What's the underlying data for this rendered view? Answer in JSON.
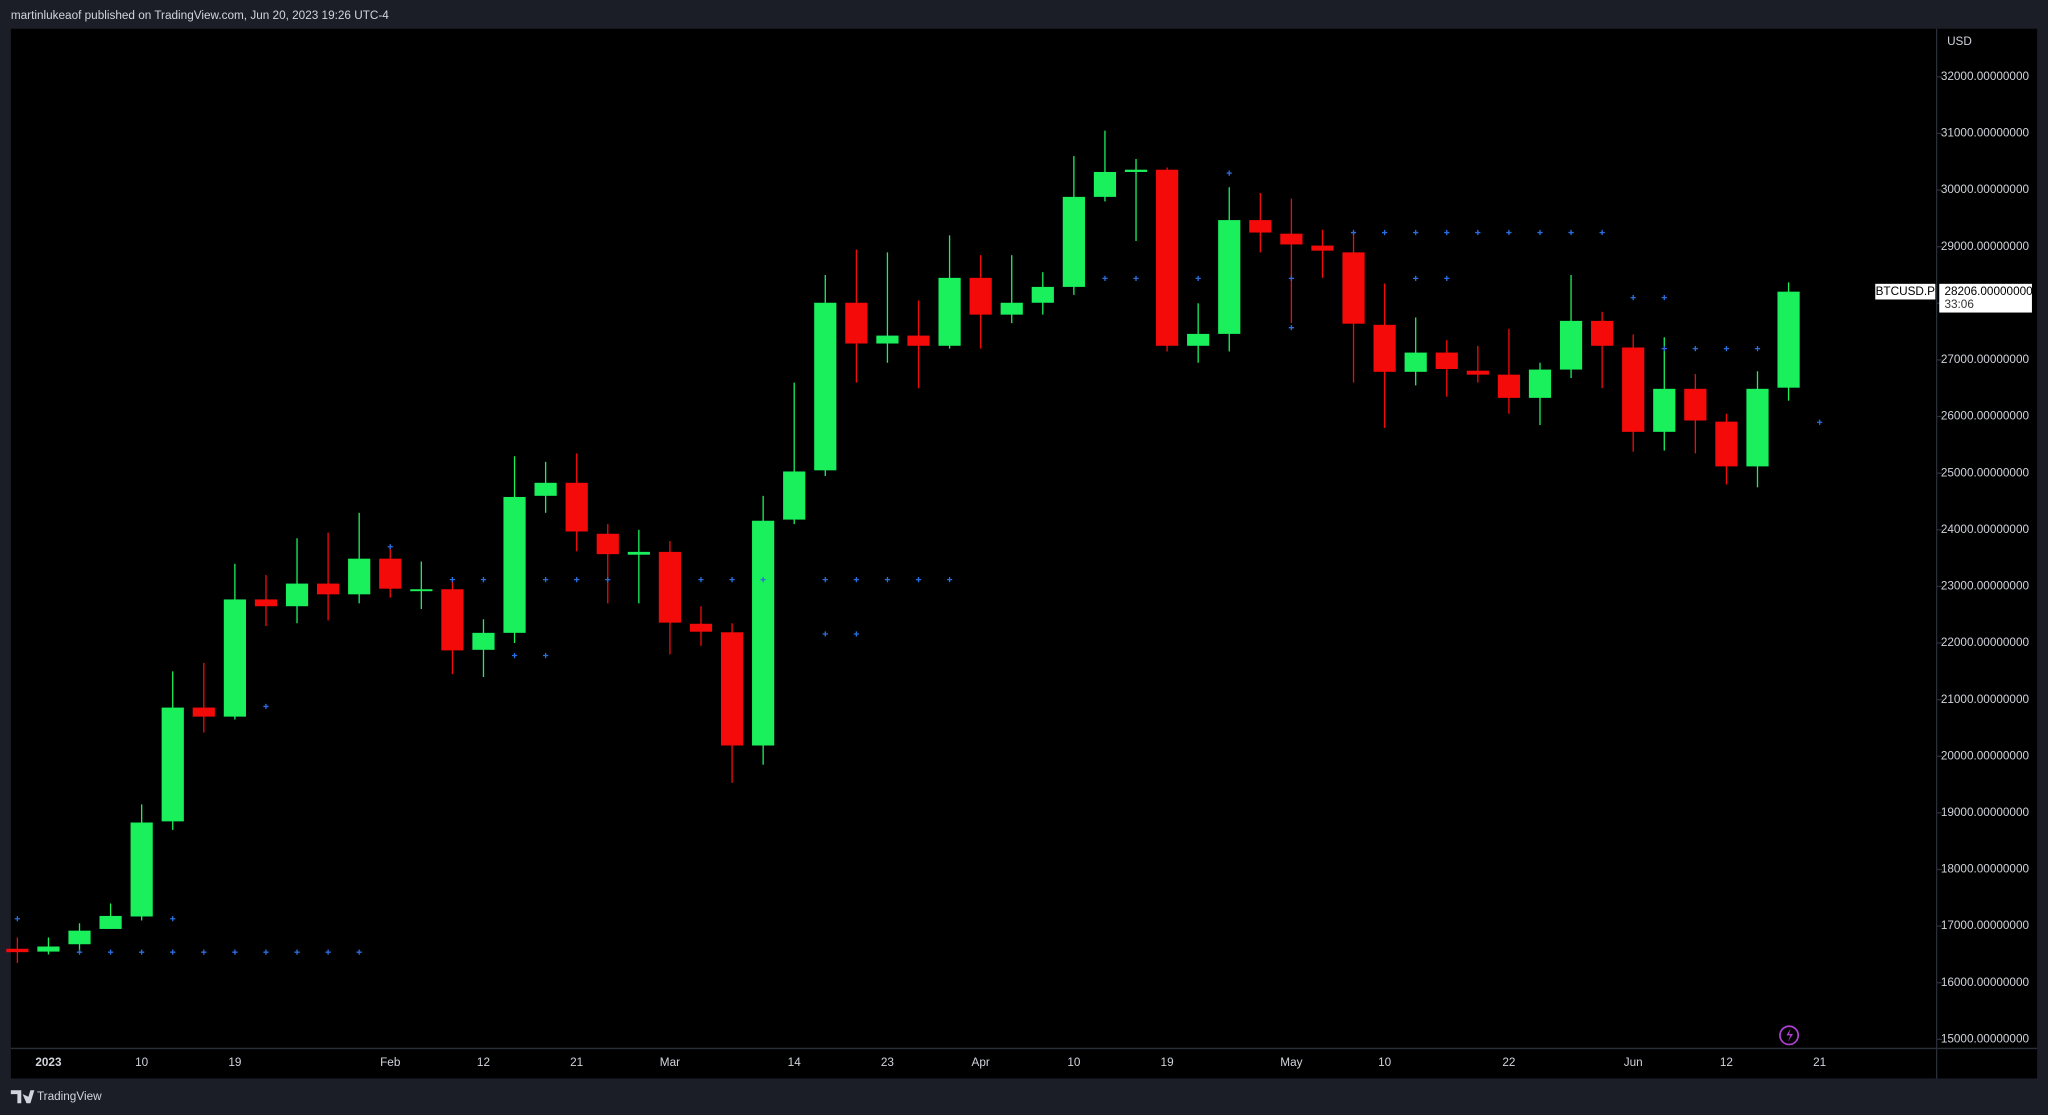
{
  "header": {
    "published": "martinlukeaof published on TradingView.com, Jun 20, 2023 19:26 UTC-4"
  },
  "footer": {
    "brand": "TradingView"
  },
  "chart_data": {
    "type": "candlestick",
    "currency": "USD",
    "symbol": "BTCUSD.P",
    "countdown": "33:06",
    "last_price": {
      "value": 28206,
      "label": "28206.00000000"
    },
    "up_color": "#1af05c",
    "down_color": "#f50a0a",
    "categories": [
      null,
      "2023",
      null,
      null,
      "10",
      null,
      null,
      "19",
      null,
      null,
      null,
      null,
      "Feb",
      null,
      null,
      "12",
      null,
      null,
      "21",
      null,
      null,
      "Mar",
      null,
      null,
      null,
      "14",
      null,
      null,
      "23",
      null,
      null,
      "Apr",
      null,
      null,
      "10",
      null,
      null,
      "19",
      null,
      null,
      null,
      "May",
      null,
      null,
      "10",
      null,
      null,
      null,
      "22",
      null,
      null,
      null,
      "Jun",
      null,
      null,
      "12",
      null,
      null,
      "21"
    ],
    "open": [
      16600,
      16550,
      16680,
      16950,
      17170,
      18850,
      20860,
      20700,
      22770,
      22650,
      23050,
      22860,
      23490,
      22940,
      22950,
      21880,
      22180,
      24600,
      24830,
      23930,
      23560,
      23610,
      22340,
      22190,
      20190,
      24180,
      25050,
      28010,
      27290,
      27430,
      27250,
      28450,
      27800,
      28010,
      28290,
      29880,
      30320,
      30360,
      27250,
      27460,
      29470,
      29230,
      29020,
      28900,
      27620,
      26790,
      27130,
      26810,
      26740,
      26330,
      26830,
      27690,
      27220,
      25730,
      26490,
      25910,
      25120,
      26510,
      null
    ],
    "high": [
      16800,
      16800,
      17050,
      17400,
      19150,
      21500,
      21650,
      23400,
      23200,
      23850,
      23950,
      24300,
      23700,
      23440,
      23100,
      22420,
      25300,
      25200,
      25350,
      24100,
      24000,
      23800,
      22650,
      22350,
      24600,
      26600,
      28500,
      28950,
      28900,
      28050,
      29200,
      28850,
      28850,
      28550,
      30600,
      31050,
      30550,
      30400,
      28000,
      30050,
      29950,
      29850,
      29300,
      29250,
      28350,
      27750,
      27350,
      27250,
      27550,
      26950,
      28500,
      27850,
      27450,
      27400,
      26750,
      26050,
      26800,
      28370,
      null
    ],
    "low": [
      16350,
      16500,
      16550,
      16950,
      17100,
      18700,
      20420,
      20650,
      22300,
      22350,
      22400,
      22700,
      22800,
      22600,
      21450,
      21400,
      22000,
      24300,
      23620,
      22700,
      22700,
      21800,
      21950,
      19530,
      19850,
      24100,
      24950,
      26600,
      26950,
      26500,
      27200,
      27200,
      27650,
      27800,
      28150,
      29800,
      29100,
      27150,
      26950,
      27150,
      28900,
      27650,
      28450,
      26600,
      25800,
      26550,
      26350,
      26600,
      26050,
      25850,
      26680,
      26500,
      25380,
      25400,
      25350,
      24800,
      24750,
      26280,
      null
    ],
    "close": [
      16540,
      16640,
      16920,
      17180,
      18830,
      20860,
      20700,
      22770,
      22650,
      23050,
      22860,
      23490,
      22960,
      22950,
      21870,
      22180,
      24580,
      24830,
      23970,
      23570,
      23610,
      22360,
      22200,
      20190,
      24160,
      25030,
      28010,
      27290,
      27430,
      27250,
      28450,
      27800,
      28010,
      28290,
      29880,
      30320,
      30360,
      27250,
      27460,
      29470,
      29250,
      29040,
      28930,
      27640,
      26790,
      27130,
      26840,
      26740,
      26330,
      26830,
      27690,
      27250,
      25730,
      26490,
      25930,
      25120,
      26490,
      28206,
      null
    ],
    "markers": {
      "color": "#2a6fe0",
      "x": [
        0,
        5,
        2,
        3,
        4,
        5,
        6,
        7,
        8,
        9,
        10,
        11,
        8,
        12,
        14,
        15,
        17,
        18,
        19,
        22,
        23,
        24,
        26,
        27,
        28,
        29,
        30,
        16,
        17,
        26,
        27,
        35,
        36,
        38,
        41,
        45,
        46,
        39,
        41,
        43,
        44,
        45,
        46,
        47,
        48,
        49,
        50,
        51,
        52,
        53,
        53,
        54,
        55,
        56,
        58
      ],
      "values": [
        17130,
        17130,
        16540,
        16540,
        16540,
        16540,
        16540,
        16540,
        16540,
        16540,
        16540,
        16540,
        20880,
        23700,
        23120,
        23120,
        23120,
        23120,
        23120,
        23120,
        23120,
        23120,
        23120,
        23120,
        23120,
        23120,
        23120,
        21780,
        21780,
        22160,
        22160,
        28440,
        28440,
        28440,
        28440,
        28440,
        28440,
        30300,
        27570,
        29250,
        29250,
        29250,
        29250,
        29250,
        29250,
        29250,
        29250,
        29250,
        28100,
        28100,
        27200,
        27200,
        27200,
        27200,
        25900
      ]
    },
    "ylim": [
      14840,
      32850
    ],
    "yticks": [
      {
        "value": 15000,
        "label": "15000.00000000"
      },
      {
        "value": 16000,
        "label": "16000.00000000"
      },
      {
        "value": 17000,
        "label": "17000.00000000"
      },
      {
        "value": 18000,
        "label": "18000.00000000"
      },
      {
        "value": 19000,
        "label": "19000.00000000"
      },
      {
        "value": 20000,
        "label": "20000.00000000"
      },
      {
        "value": 21000,
        "label": "21000.00000000"
      },
      {
        "value": 22000,
        "label": "22000.00000000"
      },
      {
        "value": 23000,
        "label": "23000.00000000"
      },
      {
        "value": 24000,
        "label": "24000.00000000"
      },
      {
        "value": 25000,
        "label": "25000.00000000"
      },
      {
        "value": 26000,
        "label": "26000.00000000"
      },
      {
        "value": 27000,
        "label": "27000.00000000"
      },
      {
        "value": 28000,
        "label": "28000.00000000"
      },
      {
        "value": 29000,
        "label": "29000.00000000"
      },
      {
        "value": 30000,
        "label": "30000.00000000"
      },
      {
        "value": 31000,
        "label": "31000.00000000"
      },
      {
        "value": 32000,
        "label": "32000.00000000"
      }
    ]
  }
}
